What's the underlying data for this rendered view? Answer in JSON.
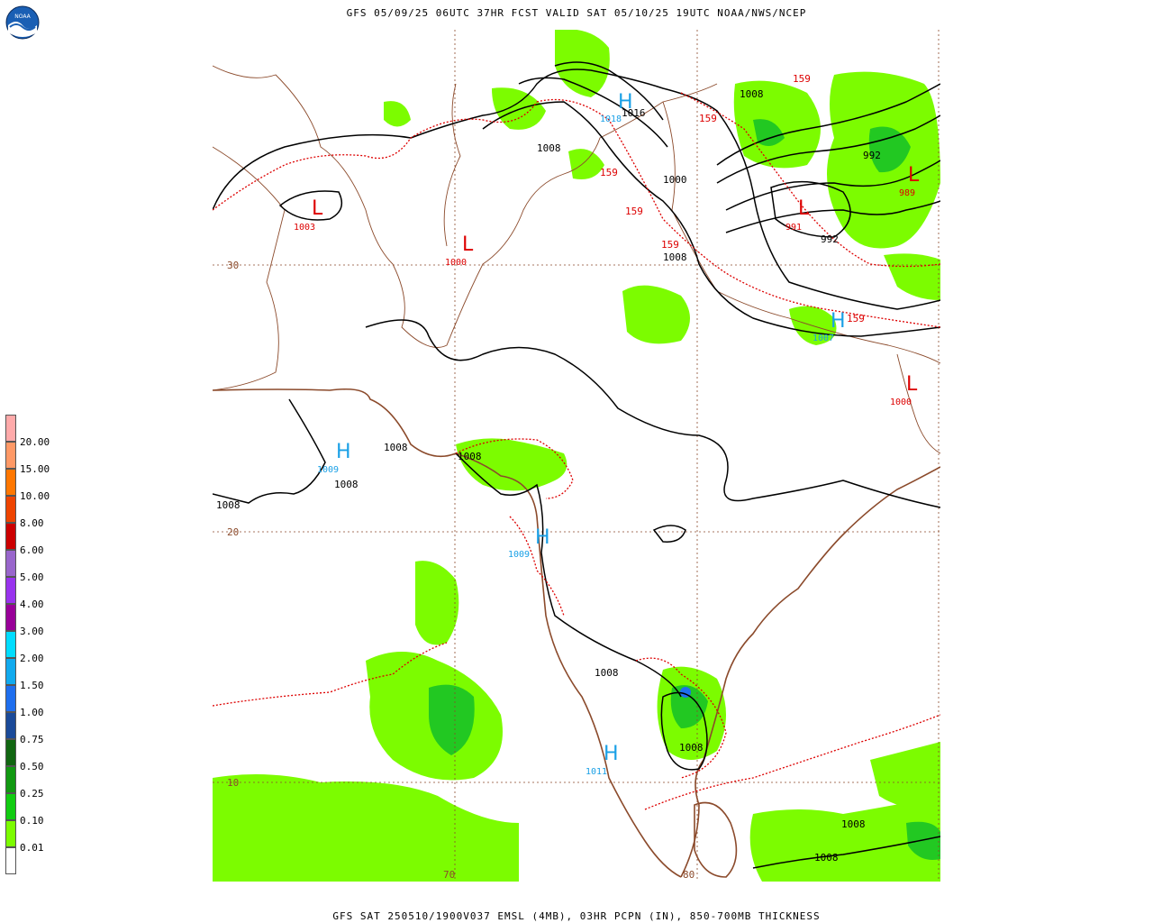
{
  "header": "GFS 05/09/25 06UTC 37HR FCST VALID SAT 05/10/25 19UTC NOAA/NWS/NCEP",
  "footer": "GFS SAT 250510/1900V037 EMSL (4MB), 03HR PCPN (IN), 850-700MB THICKNESS",
  "logo_text": "NOAA",
  "colors": {
    "precip_light": "#7cfc00",
    "precip_mid": "#22c822",
    "precip_heavy": "#1e8c4a",
    "thickness": "#dd0000",
    "isobar": "#000000",
    "coast": "#8b4a2b",
    "high": "#1aa0e6",
    "low": "#dd0000"
  },
  "legend": [
    {
      "label": "20.00",
      "color": "#ffaaaa"
    },
    {
      "label": "15.00",
      "color": "#ff9966"
    },
    {
      "label": "10.00",
      "color": "#ff7700"
    },
    {
      "label": "8.00",
      "color": "#ee4400"
    },
    {
      "label": "6.00",
      "color": "#cc0000"
    },
    {
      "label": "5.00",
      "color": "#9966cc"
    },
    {
      "label": "4.00",
      "color": "#9933ee"
    },
    {
      "label": "3.00",
      "color": "#990099"
    },
    {
      "label": "2.00",
      "color": "#00ddff"
    },
    {
      "label": "1.50",
      "color": "#11aaee"
    },
    {
      "label": "1.00",
      "color": "#1e6eee"
    },
    {
      "label": "0.75",
      "color": "#1a4a99"
    },
    {
      "label": "0.50",
      "color": "#116611"
    },
    {
      "label": "0.25",
      "color": "#119911"
    },
    {
      "label": "0.10",
      "color": "#11cc11"
    },
    {
      "label": "0.01",
      "color": "#7cfc00"
    },
    {
      "label": "",
      "color": "#ffffff"
    }
  ],
  "lat_labels": [
    "30",
    "20",
    "10"
  ],
  "lon_labels": [
    "70",
    "80"
  ],
  "pressure_centers": [
    {
      "type": "H",
      "value": "1018"
    },
    {
      "type": "L",
      "value": "1003"
    },
    {
      "type": "L",
      "value": "1000"
    },
    {
      "type": "L",
      "value": "991"
    },
    {
      "type": "L",
      "value": "989"
    },
    {
      "type": "H",
      "value": "1007"
    },
    {
      "type": "L",
      "value": "1000"
    },
    {
      "type": "H",
      "value": "1009"
    },
    {
      "type": "H",
      "value": "1009"
    },
    {
      "type": "H",
      "value": "1011"
    }
  ],
  "isobar_labels": [
    "1016",
    "1008",
    "1008",
    "1000",
    "1008",
    "992",
    "992",
    "1008",
    "1008",
    "1008",
    "1008",
    "1008",
    "1008",
    "1008",
    "1008"
  ],
  "thickness_labels": [
    "159",
    "159",
    "159",
    "159",
    "159",
    "159"
  ]
}
